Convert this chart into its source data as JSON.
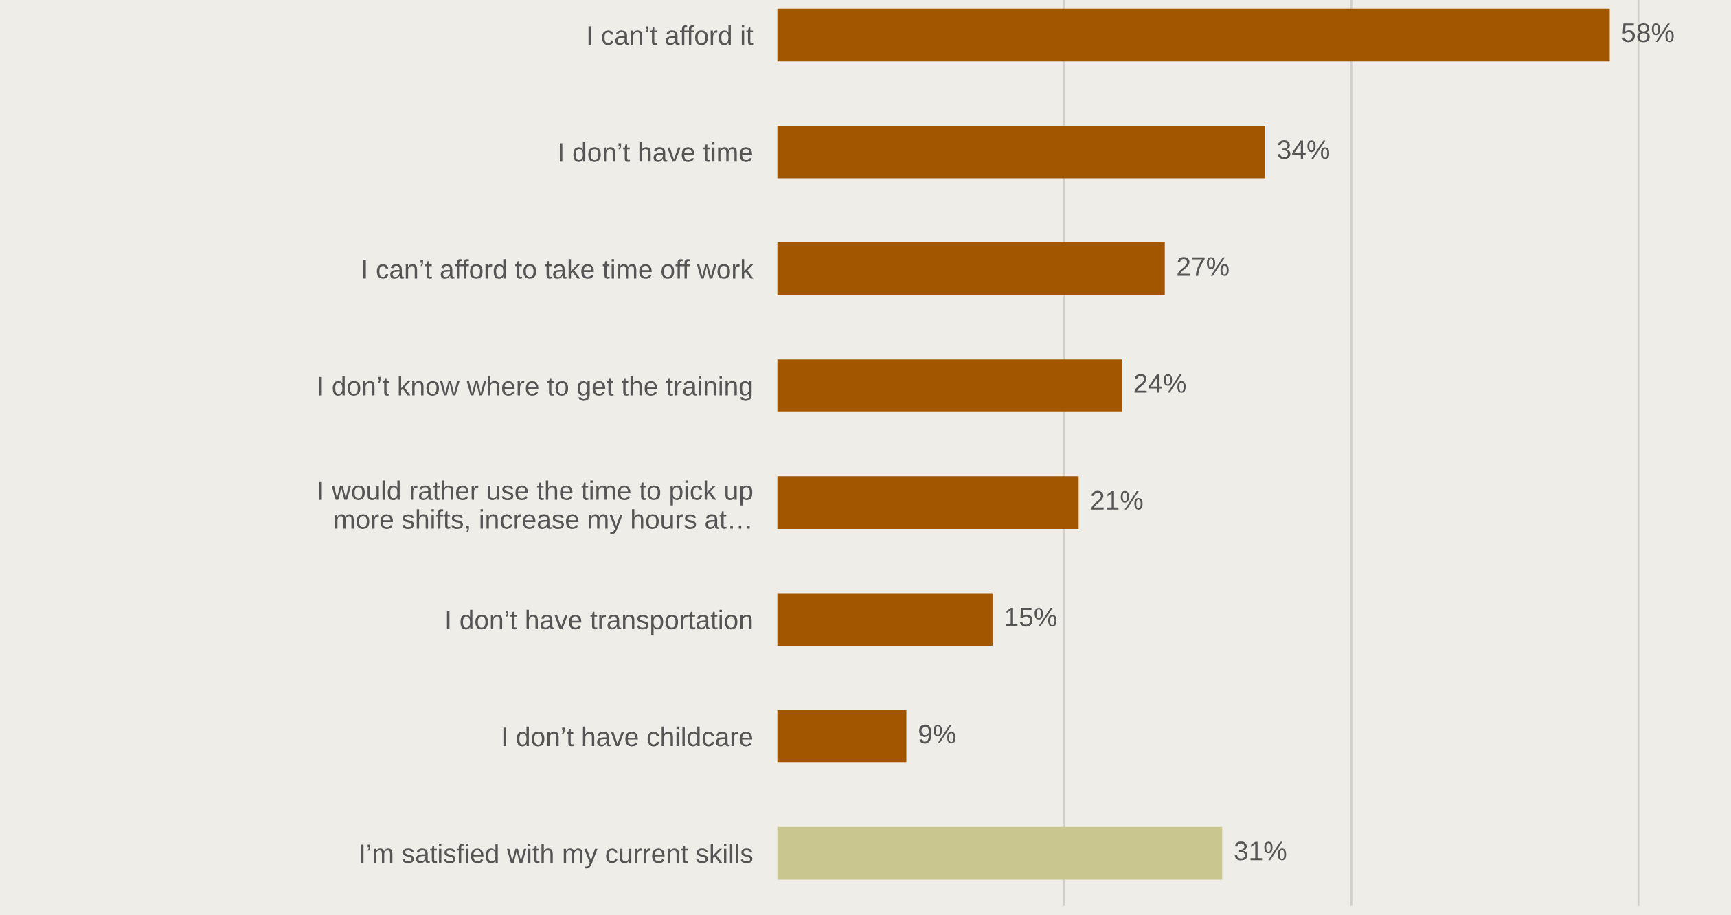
{
  "chart_data": {
    "type": "bar",
    "orientation": "horizontal",
    "categories": [
      "I can’t afford it",
      "I don’t have time",
      "I can’t afford to take time off work",
      "I don’t know where to get the training",
      "I would rather use the time to pick up\nmore shifts, increase my hours at…",
      "I don’t have transportation",
      "I don’t have childcare",
      "I’m satisfied with my current skills"
    ],
    "values": [
      58,
      34,
      27,
      24,
      21,
      15,
      9,
      31
    ],
    "colors": [
      "#a35600",
      "#a35600",
      "#a35600",
      "#a35600",
      "#a35600",
      "#a35600",
      "#a35600",
      "#c9c68f"
    ],
    "value_labels": [
      "58%",
      "34%",
      "27%",
      "24%",
      "21%",
      "15%",
      "9%",
      "31%"
    ],
    "ref_lines": [
      {
        "axis": "x",
        "value": 20,
        "color": "#d3d0c8"
      },
      {
        "axis": "x",
        "value": 40,
        "color": "#d3d0c8"
      },
      {
        "axis": "x",
        "value": 60,
        "color": "#d3d0c8"
      }
    ],
    "tick_labels": "y"
  }
}
